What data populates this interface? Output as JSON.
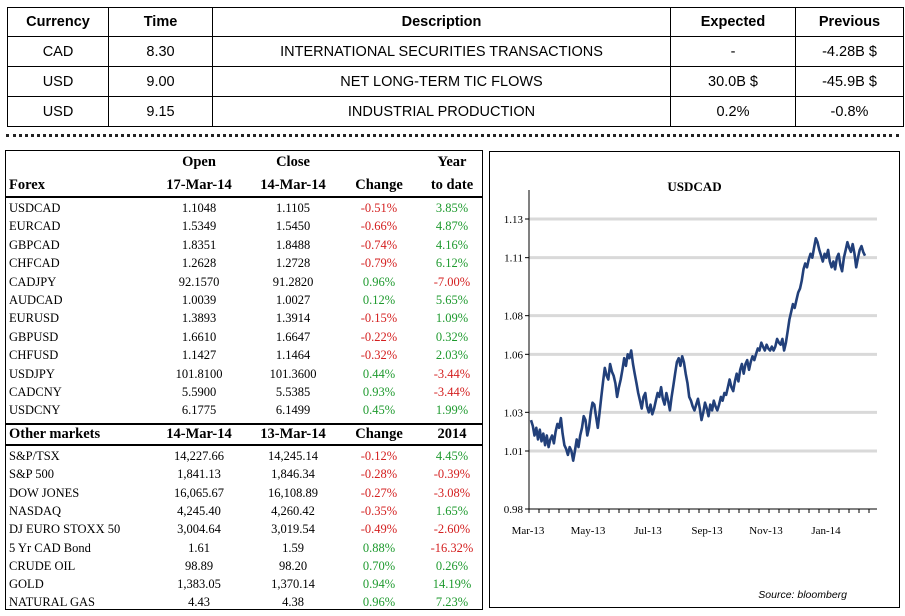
{
  "calendar": {
    "headers": [
      "Currency",
      "Time",
      "Description",
      "Expected",
      "Previous"
    ],
    "rows": [
      {
        "currency": "CAD",
        "time": "8.30",
        "description": "INTERNATIONAL SECURITIES TRANSACTIONS",
        "expected": "-",
        "previous": "-4.28B $"
      },
      {
        "currency": "USD",
        "time": "9.00",
        "description": "NET LONG-TERM TIC FLOWS",
        "expected": "30.0B $",
        "previous": "-45.9B $"
      },
      {
        "currency": "USD",
        "time": "9.15",
        "description": "INDUSTRIAL PRODUCTION",
        "expected": "0.2%",
        "previous": "-0.8%"
      }
    ]
  },
  "forex": {
    "header": {
      "label": "Forex",
      "open_line1": "Open",
      "open_line2": "17-Mar-14",
      "close_line1": "Close",
      "close_line2": "14-Mar-14",
      "change": "Change",
      "ytd_line1": "Year",
      "ytd_line2": "to date"
    },
    "rows": [
      {
        "name": "USDCAD",
        "open": "1.1048",
        "close": "1.1105",
        "change": "-0.51%",
        "ytd": "3.85%"
      },
      {
        "name": "EURCAD",
        "open": "1.5349",
        "close": "1.5450",
        "change": "-0.66%",
        "ytd": "4.87%"
      },
      {
        "name": "GBPCAD",
        "open": "1.8351",
        "close": "1.8488",
        "change": "-0.74%",
        "ytd": "4.16%"
      },
      {
        "name": "CHFCAD",
        "open": "1.2628",
        "close": "1.2728",
        "change": "-0.79%",
        "ytd": "6.12%"
      },
      {
        "name": "CADJPY",
        "open": "92.1570",
        "close": "91.2820",
        "change": "0.96%",
        "ytd": "-7.00%"
      },
      {
        "name": "AUDCAD",
        "open": "1.0039",
        "close": "1.0027",
        "change": "0.12%",
        "ytd": "5.65%"
      },
      {
        "name": "EURUSD",
        "open": "1.3893",
        "close": "1.3914",
        "change": "-0.15%",
        "ytd": "1.09%"
      },
      {
        "name": "GBPUSD",
        "open": "1.6610",
        "close": "1.6647",
        "change": "-0.22%",
        "ytd": "0.32%"
      },
      {
        "name": "CHFUSD",
        "open": "1.1427",
        "close": "1.1464",
        "change": "-0.32%",
        "ytd": "2.03%"
      },
      {
        "name": "USDJPY",
        "open": "101.8100",
        "close": "101.3600",
        "change": "0.44%",
        "ytd": "-3.44%"
      },
      {
        "name": "CADCNY",
        "open": "5.5900",
        "close": "5.5385",
        "change": "0.93%",
        "ytd": "-3.44%"
      },
      {
        "name": "USDCNY",
        "open": "6.1775",
        "close": "6.1499",
        "change": "0.45%",
        "ytd": "1.99%"
      }
    ]
  },
  "other": {
    "header": {
      "label": "Other markets",
      "col1": "14-Mar-14",
      "col2": "13-Mar-14",
      "change": "Change",
      "col4": "2014"
    },
    "rows": [
      {
        "name": "S&P/TSX",
        "v1": "14,227.66",
        "v2": "14,245.14",
        "change": "-0.12%",
        "ytd": "4.45%"
      },
      {
        "name": "S&P 500",
        "v1": "1,841.13",
        "v2": "1,846.34",
        "change": "-0.28%",
        "ytd": "-0.39%"
      },
      {
        "name": "DOW JONES",
        "v1": "16,065.67",
        "v2": "16,108.89",
        "change": "-0.27%",
        "ytd": "-3.08%"
      },
      {
        "name": "NASDAQ",
        "v1": "4,245.40",
        "v2": "4,260.42",
        "change": "-0.35%",
        "ytd": "1.65%"
      },
      {
        "name": "DJ EURO STOXX 50",
        "v1": "3,004.64",
        "v2": "3,019.54",
        "change": "-0.49%",
        "ytd": "-2.60%"
      },
      {
        "name": "5 Yr CAD Bond",
        "v1": "1.61",
        "v2": "1.59",
        "change": "0.88%",
        "ytd": "-16.32%"
      },
      {
        "name": "CRUDE OIL",
        "v1": "98.89",
        "v2": "98.20",
        "change": "0.70%",
        "ytd": "0.26%"
      },
      {
        "name": "GOLD",
        "v1": "1,383.05",
        "v2": "1,370.14",
        "change": "0.94%",
        "ytd": "14.19%"
      },
      {
        "name": "NATURAL GAS",
        "v1": "4.43",
        "v2": "4.38",
        "change": "0.96%",
        "ytd": "7.23%"
      }
    ]
  },
  "colors": {
    "negative": "#d42020",
    "positive": "#1e9a2e",
    "line": "#22407a",
    "grid": "#d9d9d9"
  },
  "chart_data": {
    "type": "line",
    "title": "USDCAD",
    "source": "Source: bloomberg",
    "xlabel": "",
    "ylabel": "",
    "ylim": [
      0.98,
      1.145
    ],
    "yticks": [
      0.98,
      1.01,
      1.03,
      1.06,
      1.08,
      1.11,
      1.13
    ],
    "xticks": [
      "Mar-13",
      "May-13",
      "Jul-13",
      "Sep-13",
      "Nov-13",
      "Jan-14"
    ],
    "grid": true,
    "series": [
      {
        "values": [
          1.026,
          1.023,
          1.018,
          1.022,
          1.016,
          1.021,
          1.015,
          1.019,
          1.013,
          1.018,
          1.012,
          1.016,
          1.018,
          1.014,
          1.02,
          1.024,
          1.022,
          1.027,
          1.019,
          1.013,
          1.011,
          1.008,
          1.012,
          1.01,
          1.005,
          1.01,
          1.016,
          1.012,
          1.018,
          1.022,
          1.028,
          1.026,
          1.018,
          1.022,
          1.03,
          1.035,
          1.034,
          1.028,
          1.022,
          1.03,
          1.038,
          1.046,
          1.053,
          1.049,
          1.047,
          1.055,
          1.051,
          1.049,
          1.045,
          1.038,
          1.043,
          1.047,
          1.052,
          1.058,
          1.054,
          1.06,
          1.058,
          1.062,
          1.055,
          1.05,
          1.045,
          1.04,
          1.036,
          1.032,
          1.038,
          1.04,
          1.033,
          1.03,
          1.034,
          1.029,
          1.032,
          1.036,
          1.04,
          1.038,
          1.043,
          1.037,
          1.034,
          1.04,
          1.036,
          1.031,
          1.038,
          1.044,
          1.05,
          1.056,
          1.058,
          1.054,
          1.059,
          1.056,
          1.05,
          1.045,
          1.038,
          1.036,
          1.033,
          1.031,
          1.034,
          1.037,
          1.032,
          1.026,
          1.03,
          1.035,
          1.032,
          1.028,
          1.034,
          1.031,
          1.036,
          1.033,
          1.031,
          1.034,
          1.038,
          1.036,
          1.04,
          1.039,
          1.043,
          1.047,
          1.043,
          1.041,
          1.046,
          1.05,
          1.046,
          1.052,
          1.055,
          1.05,
          1.055,
          1.057,
          1.052,
          1.056,
          1.059,
          1.057,
          1.06,
          1.063,
          1.062,
          1.066,
          1.064,
          1.062,
          1.065,
          1.063,
          1.062,
          1.064,
          1.062,
          1.064,
          1.068,
          1.066,
          1.065,
          1.068,
          1.062,
          1.066,
          1.072,
          1.078,
          1.082,
          1.086,
          1.084,
          1.088,
          1.092,
          1.094,
          1.098,
          1.104,
          1.107,
          1.105,
          1.109,
          1.112,
          1.11,
          1.115,
          1.12,
          1.118,
          1.114,
          1.111,
          1.108,
          1.112,
          1.11,
          1.114,
          1.108,
          1.105,
          1.108,
          1.104,
          1.11,
          1.112,
          1.106,
          1.103,
          1.11,
          1.114,
          1.118,
          1.115,
          1.113,
          1.117,
          1.112,
          1.105,
          1.11,
          1.114,
          1.116,
          1.113,
          1.111
        ]
      }
    ]
  }
}
